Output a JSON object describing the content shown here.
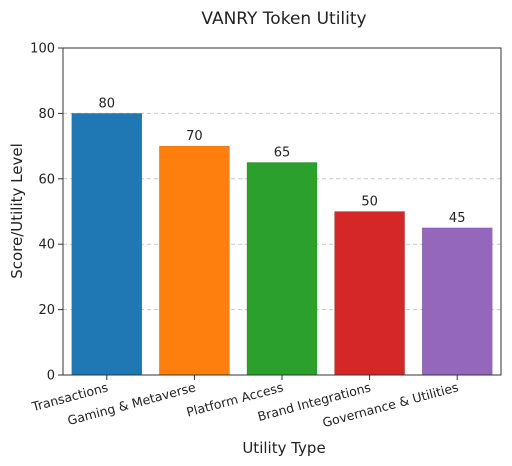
{
  "chart_data": {
    "type": "bar",
    "title": "VANRY Token Utility",
    "xlabel": "Utility Type",
    "ylabel": "Score/Utility Level",
    "categories": [
      "Transactions",
      "Gaming & Metaverse",
      "Platform Access",
      "Brand Integrations",
      "Governance & Utilities"
    ],
    "values": [
      80,
      70,
      65,
      50,
      45
    ],
    "colors": [
      "#1f77b4",
      "#ff7f0e",
      "#2ca02c",
      "#d62728",
      "#9467bd"
    ],
    "ylim": [
      0,
      100
    ],
    "yticks": [
      0,
      20,
      40,
      60,
      80,
      100
    ],
    "grid": "y-dashed",
    "data_labels": true
  }
}
